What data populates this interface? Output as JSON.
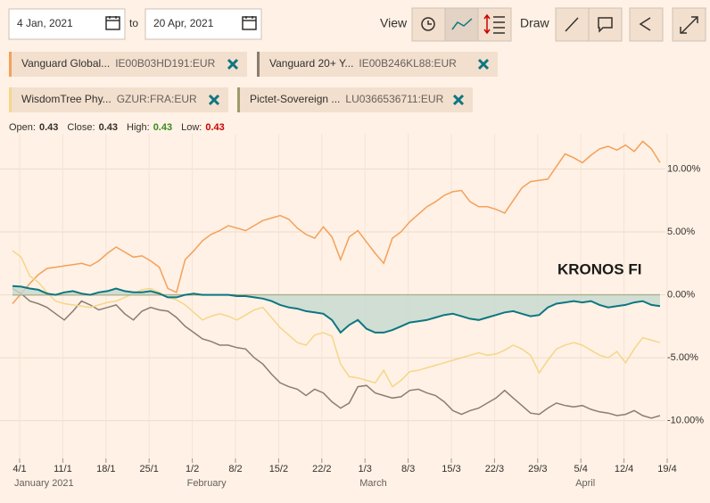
{
  "toolbar": {
    "date_from": "4 Jan, 2021",
    "to": "to",
    "date_to": "20 Apr, 2021",
    "view": "View",
    "draw": "Draw"
  },
  "ohlc": [
    {
      "label": "Open:",
      "value": 0.43
    },
    {
      "label": "Close:",
      "value": 0.43
    },
    {
      "label": "High:",
      "value": 0.43,
      "color": "#3a8a1f"
    },
    {
      "label": "Low:",
      "value": 0.43,
      "color": "#cc0000"
    }
  ],
  "chart_data": {
    "type": "line",
    "categories": [
      "4/1",
      null,
      null,
      null,
      null,
      "11/1",
      null,
      null,
      null,
      null,
      "18/1",
      null,
      null,
      null,
      null,
      "25/1",
      null,
      null,
      null,
      null,
      "1/2",
      null,
      null,
      null,
      null,
      "8/2",
      null,
      null,
      null,
      null,
      "15/2",
      null,
      null,
      null,
      null,
      "22/2",
      null,
      null,
      null,
      null,
      "1/3",
      null,
      null,
      null,
      null,
      "8/3",
      null,
      null,
      null,
      null,
      "15/3",
      null,
      null,
      null,
      null,
      "22/3",
      null,
      null,
      null,
      null,
      "29/3",
      null,
      null,
      null,
      null,
      "5/4",
      null,
      null,
      null,
      null,
      "12/4",
      null,
      null,
      null,
      null,
      "19/4"
    ],
    "months": [
      "January 2021",
      null,
      null,
      null,
      null,
      null,
      null,
      null,
      null,
      null,
      null,
      null,
      null,
      null,
      null,
      null,
      null,
      null,
      null,
      null,
      "February",
      null,
      null,
      null,
      null,
      null,
      null,
      null,
      null,
      null,
      null,
      null,
      null,
      null,
      null,
      null,
      null,
      null,
      null,
      null,
      "March",
      null,
      null,
      null,
      null,
      null,
      null,
      null,
      null,
      null,
      null,
      null,
      null,
      null,
      null,
      null,
      null,
      null,
      null,
      null,
      null,
      null,
      null,
      null,
      null,
      "April",
      null,
      null,
      null,
      null,
      null,
      null,
      null,
      null,
      null,
      null
    ],
    "ylim": [
      -13,
      12.8
    ],
    "yticks": [
      {
        "value": 10,
        "label": "10.00%"
      },
      {
        "value": 5,
        "label": "5.00%"
      },
      {
        "value": 0,
        "label": "0.00%"
      },
      {
        "value": -5,
        "label": "-5.00%"
      },
      {
        "value": -10,
        "label": "-10.00%"
      }
    ],
    "grid": true,
    "series": [
      {
        "name": "KRONOS FI",
        "color": "#0d7680",
        "fill": "#c4d9d0",
        "values": [
          0.7,
          0.65,
          0.5,
          0.4,
          0.1,
          0,
          0.2,
          0.3,
          0.1,
          0,
          0.2,
          0.3,
          0.5,
          0.3,
          0.2,
          0.2,
          0.3,
          0.1,
          -0.2,
          -0.2,
          0,
          0.1,
          0,
          0,
          0,
          0,
          -0.1,
          -0.1,
          -0.2,
          -0.3,
          -0.5,
          -0.8,
          -1,
          -1.1,
          -1.3,
          -1.4,
          -1.5,
          -2,
          -3,
          -2.4,
          -2,
          -2.7,
          -3,
          -3,
          -2.8,
          -2.5,
          -2.2,
          -2.1,
          -2,
          -1.8,
          -1.6,
          -1.5,
          -1.7,
          -1.9,
          -2,
          -1.8,
          -1.6,
          -1.4,
          -1.3,
          -1.5,
          -1.7,
          -1.6,
          -1,
          -0.7,
          -0.6,
          -0.5,
          -0.6,
          -0.5,
          -0.8,
          -1,
          -0.9,
          -0.8,
          -0.6,
          -0.5,
          -0.8,
          -0.9
        ]
      },
      {
        "name": "Vanguard Global...",
        "code": "IE00B03HD191:EUR",
        "color": "#f4a05a",
        "values": [
          -0.7,
          0.1,
          0.9,
          1.6,
          2.1,
          2.2,
          2.3,
          2.4,
          2.5,
          2.3,
          2.7,
          3.3,
          3.8,
          3.4,
          3,
          3.1,
          2.7,
          2.2,
          0.5,
          0.2,
          2.8,
          3.5,
          4.3,
          4.8,
          5.1,
          5.5,
          5.3,
          5.1,
          5.5,
          5.9,
          6.1,
          6.3,
          6,
          5.3,
          4.8,
          4.5,
          5.4,
          4.6,
          2.8,
          4.6,
          5.1,
          4.2,
          3.3,
          2.5,
          4.5,
          5,
          5.8,
          6.4,
          7,
          7.4,
          7.9,
          8.2,
          8.3,
          7.4,
          7,
          7,
          6.8,
          6.5,
          7.5,
          8.5,
          9,
          9.1,
          9.2,
          10.2,
          11.2,
          10.9,
          10.5,
          11.1,
          11.6,
          11.8,
          11.5,
          11.9,
          11.4,
          12.2,
          11.6,
          10.5
        ]
      },
      {
        "name": "Vanguard 20+ Y...",
        "code": "IE00B246KL88:EUR",
        "color": "#8b7d70",
        "values": [
          0.5,
          0.1,
          -0.5,
          -0.7,
          -1,
          -1.5,
          -2,
          -1.3,
          -0.5,
          -0.8,
          -1.2,
          -1,
          -0.8,
          -1.5,
          -2,
          -1.3,
          -1,
          -1.2,
          -1.3,
          -1.8,
          -2.5,
          -3,
          -3.5,
          -3.7,
          -4,
          -4,
          -4.2,
          -4.3,
          -5,
          -5.5,
          -6.3,
          -7,
          -7.3,
          -7.5,
          -8,
          -7.5,
          -7.8,
          -8.5,
          -9,
          -8.6,
          -7.3,
          -7.2,
          -7.8,
          -8,
          -8.2,
          -8.1,
          -7.6,
          -7.5,
          -7.8,
          -8,
          -8.5,
          -9.2,
          -9.5,
          -9.2,
          -9,
          -8.6,
          -8.2,
          -7.6,
          -8.2,
          -8.8,
          -9.4,
          -9.5,
          -9,
          -8.6,
          -8.8,
          -8.9,
          -8.8,
          -9.1,
          -9.3,
          -9.4,
          -9.6,
          -9.5,
          -9.2,
          -9.6,
          -9.8,
          -9.6
        ]
      },
      {
        "name": "WisdomTree Phy...",
        "code": "GZUR:FRA:EUR",
        "color": "#f5d68a",
        "values": [
          3.5,
          3,
          1.5,
          1,
          0.2,
          -0.5,
          -0.7,
          -0.8,
          -0.9,
          -1,
          -0.8,
          -0.6,
          -0.5,
          -0.2,
          0.1,
          0.4,
          0.5,
          0.2,
          -0.2,
          -0.4,
          -0.8,
          -1.4,
          -2,
          -1.7,
          -1.5,
          -1.7,
          -2,
          -1.6,
          -1.2,
          -1,
          -1.8,
          -2.6,
          -3.2,
          -3.8,
          -4,
          -3.2,
          -3,
          -3.3,
          -5.5,
          -6.5,
          -6.6,
          -6.8,
          -7,
          -6,
          -7.3,
          -6.8,
          -6.1,
          -6,
          -5.8,
          -5.6,
          -5.4,
          -5.2,
          -5,
          -4.8,
          -4.6,
          -4.8,
          -4.7,
          -4.4,
          -4,
          -4.3,
          -4.8,
          -6.2,
          -5.2,
          -4.3,
          -4,
          -3.8,
          -4,
          -4.4,
          -4.8,
          -5,
          -4.5,
          -5.4,
          -4.3,
          -3.4,
          -3.6,
          -3.8
        ]
      },
      {
        "name": "Pictet-Sovereign ...",
        "code": "LU0366536711:EUR",
        "color": "#a09a6a",
        "values": [
          0,
          0,
          0,
          0,
          0,
          0,
          0,
          0,
          0,
          0,
          0,
          0,
          0,
          0,
          0,
          0,
          0,
          0,
          0,
          0,
          0,
          0,
          0,
          0,
          0,
          0,
          0,
          0,
          0,
          0,
          0,
          0,
          0,
          0,
          0,
          0,
          0,
          0,
          0,
          0,
          0,
          0,
          0,
          0,
          0,
          0,
          0,
          0,
          0,
          0,
          0,
          0,
          0,
          0,
          0,
          0,
          0,
          0,
          0,
          0,
          0,
          0,
          0,
          0,
          0,
          0,
          0,
          0,
          0,
          0,
          0,
          0,
          0,
          0,
          0,
          0
        ]
      }
    ]
  }
}
